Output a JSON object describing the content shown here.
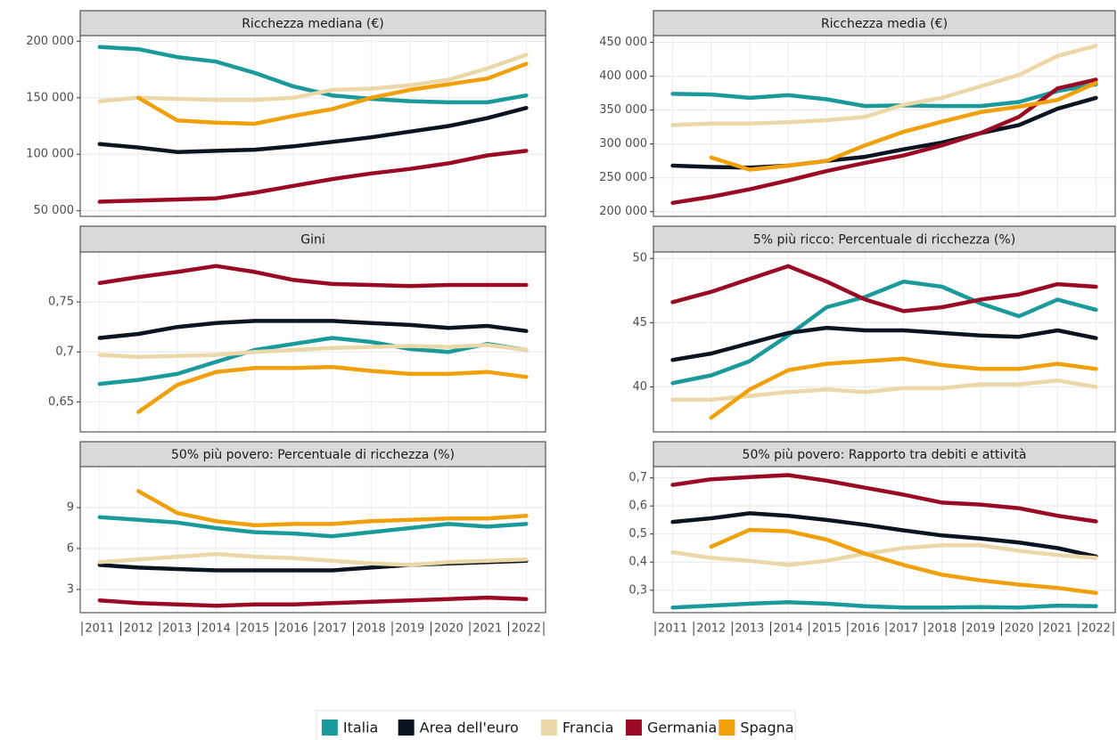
{
  "chart_data": [
    {
      "type": "line",
      "title": "Ricchezza mediana (€)",
      "categories": [
        null,
        null,
        null,
        null,
        null,
        null,
        null,
        null,
        null,
        null,
        null,
        null
      ],
      "ylim": [
        45000,
        205000
      ],
      "yticks": [
        {
          "value": 50000,
          "label": "50 000"
        },
        {
          "value": 100000,
          "label": "100 000"
        },
        {
          "value": 150000,
          "label": "150 000"
        },
        {
          "value": 200000,
          "label": "200 000"
        }
      ],
      "series": [
        {
          "name": "Italia",
          "color": "#1a9a9a",
          "values": [
            195000,
            193000,
            186000,
            182000,
            172000,
            160000,
            152000,
            149000,
            147000,
            146000,
            146000,
            152000
          ]
        },
        {
          "name": "Area dell'euro",
          "color": "#0b1521",
          "values": [
            109000,
            106000,
            102000,
            103000,
            104000,
            107000,
            111000,
            115000,
            120000,
            125000,
            132000,
            141000
          ]
        },
        {
          "name": "Francia",
          "color": "#ead8a8",
          "values": [
            147000,
            150000,
            149000,
            148000,
            148000,
            150000,
            157000,
            158000,
            161000,
            166000,
            176000,
            188000
          ]
        },
        {
          "name": "Germania",
          "color": "#9b0a24",
          "values": [
            58000,
            59000,
            60000,
            61000,
            66000,
            72000,
            78000,
            83000,
            87000,
            92000,
            99000,
            103000
          ]
        },
        {
          "name": "Spagna",
          "color": "#f0a00a",
          "values": [
            null,
            150000,
            130000,
            128000,
            127000,
            134000,
            140000,
            150000,
            157000,
            162000,
            167000,
            180000
          ]
        }
      ]
    },
    {
      "type": "line",
      "title": "Ricchezza media (€)",
      "categories": [
        null,
        null,
        null,
        null,
        null,
        null,
        null,
        null,
        null,
        null,
        null,
        null
      ],
      "ylim": [
        193000,
        460000
      ],
      "yticks": [
        {
          "value": 200000,
          "label": "200 000"
        },
        {
          "value": 250000,
          "label": "250 000"
        },
        {
          "value": 300000,
          "label": "300 000"
        },
        {
          "value": 350000,
          "label": "350 000"
        },
        {
          "value": 400000,
          "label": "400 000"
        },
        {
          "value": 450000,
          "label": "450 000"
        }
      ],
      "series": [
        {
          "color": "#1a9a9a",
          "values": [
            374000,
            373000,
            368000,
            372000,
            366000,
            356000,
            357000,
            356000,
            356000,
            362000,
            378000,
            388000
          ]
        },
        {
          "color": "#0b1521",
          "values": [
            268000,
            266000,
            265000,
            268000,
            275000,
            281000,
            292000,
            302000,
            316000,
            328000,
            352000,
            368000
          ]
        },
        {
          "color": "#ead8a8",
          "values": [
            328000,
            330000,
            330000,
            332000,
            335000,
            340000,
            358000,
            368000,
            385000,
            402000,
            430000,
            445000
          ]
        },
        {
          "color": "#9b0a24",
          "values": [
            213000,
            222000,
            233000,
            246000,
            260000,
            272000,
            283000,
            298000,
            316000,
            340000,
            382000,
            395000
          ]
        },
        {
          "color": "#f0a00a",
          "values": [
            null,
            280000,
            262000,
            268000,
            275000,
            298000,
            318000,
            333000,
            347000,
            355000,
            365000,
            390000
          ]
        }
      ]
    },
    {
      "type": "line",
      "title": "Gini",
      "categories": [
        null,
        null,
        null,
        null,
        null,
        null,
        null,
        null,
        null,
        null,
        null,
        null
      ],
      "ylim": [
        0.62,
        0.8
      ],
      "yticks": [
        {
          "value": 0.65,
          "label": "0,65"
        },
        {
          "value": 0.7,
          "label": "0,7"
        },
        {
          "value": 0.75,
          "label": "0,75"
        }
      ],
      "series": [
        {
          "color": "#1a9a9a",
          "values": [
            0.668,
            0.672,
            0.678,
            0.69,
            0.702,
            0.708,
            0.714,
            0.71,
            0.703,
            0.7,
            0.708,
            0.702
          ]
        },
        {
          "color": "#0b1521",
          "values": [
            0.714,
            0.718,
            0.725,
            0.729,
            0.731,
            0.731,
            0.731,
            0.729,
            0.727,
            0.724,
            0.726,
            0.721
          ]
        },
        {
          "color": "#ead8a8",
          "values": [
            0.697,
            0.695,
            0.696,
            0.697,
            0.7,
            0.702,
            0.704,
            0.705,
            0.706,
            0.705,
            0.707,
            0.702
          ]
        },
        {
          "color": "#9b0a24",
          "values": [
            0.769,
            0.775,
            0.78,
            0.786,
            0.78,
            0.772,
            0.768,
            0.767,
            0.766,
            0.767,
            0.767,
            0.767
          ]
        },
        {
          "color": "#f0a00a",
          "values": [
            null,
            0.64,
            0.667,
            0.68,
            0.684,
            0.684,
            0.685,
            0.681,
            0.678,
            0.678,
            0.68,
            0.675
          ]
        }
      ]
    },
    {
      "type": "line",
      "title": "5% più ricco: Percentuale di ricchezza (%)",
      "categories": [
        null,
        null,
        null,
        null,
        null,
        null,
        null,
        null,
        null,
        null,
        null,
        null
      ],
      "ylim": [
        36.5,
        50.5
      ],
      "yticks": [
        40,
        45,
        50
      ],
      "series": [
        {
          "color": "#1a9a9a",
          "values": [
            40.3,
            40.9,
            42.0,
            44.0,
            46.2,
            47.0,
            48.2,
            47.8,
            46.5,
            45.5,
            46.8,
            46.0
          ]
        },
        {
          "color": "#0b1521",
          "values": [
            42.1,
            42.6,
            43.4,
            44.2,
            44.6,
            44.4,
            44.4,
            44.2,
            44.0,
            43.9,
            44.4,
            43.8
          ]
        },
        {
          "color": "#ead8a8",
          "values": [
            39.0,
            39.0,
            39.3,
            39.6,
            39.8,
            39.6,
            39.9,
            39.9,
            40.2,
            40.2,
            40.5,
            40.0
          ]
        },
        {
          "color": "#9b0a24",
          "values": [
            46.6,
            47.4,
            48.4,
            49.4,
            48.2,
            46.8,
            45.9,
            46.2,
            46.8,
            47.2,
            48.0,
            47.8
          ]
        },
        {
          "color": "#f0a00a",
          "values": [
            null,
            37.6,
            39.8,
            41.3,
            41.8,
            42.0,
            42.2,
            41.7,
            41.4,
            41.4,
            41.8,
            41.4
          ]
        }
      ]
    },
    {
      "type": "line",
      "title": "50% più povero: Percentuale di ricchezza (%)",
      "categories": [
        "2011",
        "2012",
        "2013",
        "2014",
        "2015",
        "2016",
        "2017",
        "2018",
        "2019",
        "2020",
        "2021",
        "2022"
      ],
      "ylim": [
        1.3,
        12
      ],
      "yticks": [
        3,
        6,
        9
      ],
      "series": [
        {
          "color": "#1a9a9a",
          "values": [
            8.3,
            8.1,
            7.9,
            7.5,
            7.2,
            7.1,
            6.9,
            7.2,
            7.5,
            7.8,
            7.6,
            7.8
          ]
        },
        {
          "color": "#0b1521",
          "values": [
            4.8,
            4.6,
            4.5,
            4.4,
            4.4,
            4.4,
            4.4,
            4.6,
            4.8,
            4.9,
            5.0,
            5.1
          ]
        },
        {
          "color": "#ead8a8",
          "values": [
            5.0,
            5.2,
            5.4,
            5.6,
            5.4,
            5.3,
            5.1,
            4.9,
            4.8,
            5.0,
            5.1,
            5.2
          ]
        },
        {
          "color": "#9b0a24",
          "values": [
            2.2,
            2.0,
            1.9,
            1.8,
            1.9,
            1.9,
            2.0,
            2.1,
            2.2,
            2.3,
            2.4,
            2.3
          ]
        },
        {
          "color": "#f0a00a",
          "values": [
            null,
            10.2,
            8.6,
            8.0,
            7.7,
            7.8,
            7.8,
            8.0,
            8.1,
            8.2,
            8.2,
            8.4
          ]
        }
      ]
    },
    {
      "type": "line",
      "title": "50% più povero: Rapporto tra debiti e attività",
      "categories": [
        "2011",
        "2012",
        "2013",
        "2014",
        "2015",
        "2016",
        "2017",
        "2018",
        "2019",
        "2020",
        "2021",
        "2022"
      ],
      "ylim": [
        0.22,
        0.74
      ],
      "yticks": [
        {
          "value": 0.3,
          "label": "0,3"
        },
        {
          "value": 0.4,
          "label": "0,4"
        },
        {
          "value": 0.5,
          "label": "0,5"
        },
        {
          "value": 0.6,
          "label": "0,6"
        },
        {
          "value": 0.7,
          "label": "0,7"
        }
      ],
      "series": [
        {
          "color": "#1a9a9a",
          "values": [
            0.238,
            0.245,
            0.252,
            0.257,
            0.252,
            0.243,
            0.238,
            0.238,
            0.24,
            0.238,
            0.245,
            0.243
          ]
        },
        {
          "color": "#0b1521",
          "values": [
            0.543,
            0.556,
            0.574,
            0.565,
            0.55,
            0.533,
            0.513,
            0.495,
            0.484,
            0.47,
            0.45,
            0.42
          ]
        },
        {
          "color": "#ead8a8",
          "values": [
            0.435,
            0.415,
            0.405,
            0.39,
            0.405,
            0.43,
            0.45,
            0.46,
            0.46,
            0.44,
            0.425,
            0.415
          ]
        },
        {
          "color": "#9b0a24",
          "values": [
            0.675,
            0.695,
            0.703,
            0.71,
            0.69,
            0.665,
            0.64,
            0.612,
            0.605,
            0.592,
            0.565,
            0.545
          ]
        },
        {
          "color": "#f0a00a",
          "values": [
            null,
            0.455,
            0.515,
            0.51,
            0.48,
            0.43,
            0.39,
            0.355,
            0.335,
            0.32,
            0.308,
            0.29
          ]
        }
      ]
    }
  ]
}
